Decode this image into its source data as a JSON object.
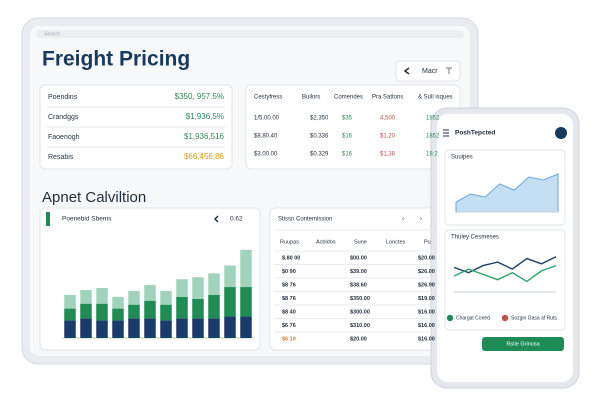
{
  "search": "Search",
  "title": "Freight Pricing",
  "menu_button": "Macr",
  "summary": [
    {
      "label": "Poendins",
      "value": "$350, 957.5%",
      "color": "#2e8b57"
    },
    {
      "label": "Crandggs",
      "value": "$1,936,5%",
      "color": "#2e8b57"
    },
    {
      "label": "Faoenogh",
      "value": "$1,936,516",
      "color": "#2e8b57"
    },
    {
      "label": "Resabis",
      "value": "$66,456,86",
      "color": "#d4a017"
    }
  ],
  "rates_table": {
    "headers": [
      "Cestyfress",
      "Builors",
      "Comendes",
      "Pra Sattons",
      "& Sull isques"
    ],
    "rows": [
      [
        "1/5.00.00",
        "$2,350",
        "$35",
        "4,500",
        "1852"
      ],
      [
        "$8.80.40",
        "$0.336",
        "$16",
        "$1,20",
        "1852"
      ],
      [
        "$3.00.00",
        "$0.329",
        "$16",
        "$1,38",
        "18:2"
      ]
    ]
  },
  "section_title": "Apnet Calviltion",
  "volume_card": {
    "title": "Poenebid Sbems",
    "control": "0.62"
  },
  "commission_table": {
    "title": "Stissn Contemission",
    "headers": [
      "Ruupas",
      "Acbldos",
      "Sune",
      "Lonctes",
      "Pu"
    ],
    "rows": [
      [
        "$.80 00",
        "$00.00",
        "$20.00"
      ],
      [
        "$0 90",
        "$39.00",
        "$26.00"
      ],
      [
        "$8 76",
        "$38.60",
        "$26.90"
      ],
      [
        "$8 76",
        "$350.00",
        "$19.00"
      ],
      [
        "$8 40",
        "$300.00",
        "$16.00"
      ],
      [
        "$6 76",
        "$310.00",
        "$16.00"
      ],
      [
        "$6 10",
        "$20.00",
        "$16.00"
      ]
    ]
  },
  "phone": {
    "title": "PoshTepcted",
    "button": "Rstie Grinosa"
  },
  "chart_data": [
    {
      "type": "stacked_bar",
      "ylim": [
        0,
        100
      ],
      "series": [
        {
          "color": "#1b3c6b",
          "values": [
            18,
            20,
            18,
            18,
            20,
            20,
            18,
            20,
            20,
            20,
            22,
            22
          ]
        },
        {
          "color": "#1e8c55",
          "values": [
            12,
            15,
            17,
            12,
            14,
            18,
            16,
            22,
            20,
            24,
            30,
            30
          ]
        },
        {
          "color": "#9fd3bb",
          "values": [
            14,
            14,
            16,
            12,
            14,
            16,
            14,
            18,
            22,
            22,
            22,
            38
          ]
        }
      ]
    },
    {
      "type": "area",
      "title": "Suuipes",
      "ylim": [
        0,
        50
      ],
      "color": "#9cc8ec",
      "values": [
        10,
        18,
        15,
        28,
        22,
        35,
        32,
        38
      ]
    },
    {
      "type": "line",
      "title": "Thuley Cesmeses",
      "ylim": [
        0,
        50
      ],
      "series": [
        {
          "name": "Chargat Coned",
          "color": "#1d8a5a",
          "line_color": "#1e3f66",
          "values": [
            28,
            22,
            30,
            34,
            26,
            38,
            32,
            40
          ]
        },
        {
          "name": "Sozgin Gasa af Ruts",
          "color": "#c0504d",
          "line_color": "#2fa36b",
          "values": [
            18,
            26,
            20,
            14,
            22,
            12,
            24,
            30
          ]
        }
      ]
    }
  ]
}
